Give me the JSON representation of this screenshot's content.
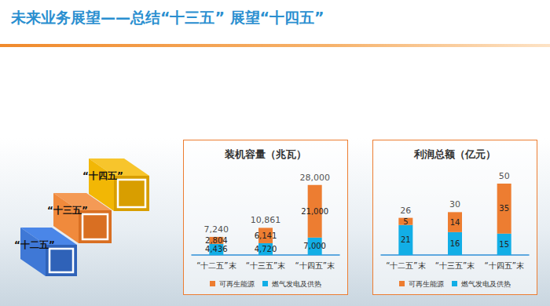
{
  "header": {
    "title": "未来业务展望——总结“十三五” 展望“十四五”"
  },
  "stages": [
    "“十二五”",
    "“十三五”",
    "“十四五”"
  ],
  "chart_data": [
    {
      "type": "bar",
      "title": "装机容量（兆瓦）",
      "stacked": true,
      "data_labels": true,
      "tick_labels": "x",
      "legend": "bottom",
      "categories": [
        "“十二五”末",
        "“十三五”末",
        "“十四五”末"
      ],
      "ylim": [
        0,
        32000
      ],
      "series": [
        {
          "name": "燃气发电及供热",
          "color": "#12aee6",
          "values": [
            4436,
            4720,
            7000
          ],
          "value_labels": [
            "4,436",
            "4,720",
            "7,000"
          ]
        },
        {
          "name": "可再生能源",
          "color": "#ed7d31",
          "values": [
            2804,
            6141,
            21000
          ],
          "value_labels": [
            "2,804",
            "6,141",
            "21,000"
          ]
        }
      ],
      "totals": {
        "values": [
          7240,
          10861,
          28000
        ],
        "value_labels": [
          "7,240",
          "10,861",
          "28,000"
        ]
      }
    },
    {
      "type": "bar",
      "title": "利润总额（亿元）",
      "stacked": true,
      "data_labels": true,
      "tick_labels": "x",
      "legend": "bottom",
      "categories": [
        "“十二五”末",
        "“十三五”末",
        "“十四五”末"
      ],
      "ylim": [
        0,
        56
      ],
      "series": [
        {
          "name": "燃气发电及供热",
          "color": "#12aee6",
          "values": [
            21,
            16,
            15
          ]
        },
        {
          "name": "可再生能源",
          "color": "#ed7d31",
          "values": [
            5,
            14,
            35
          ]
        }
      ],
      "totals": {
        "values": [
          26,
          30,
          50
        ]
      }
    }
  ]
}
